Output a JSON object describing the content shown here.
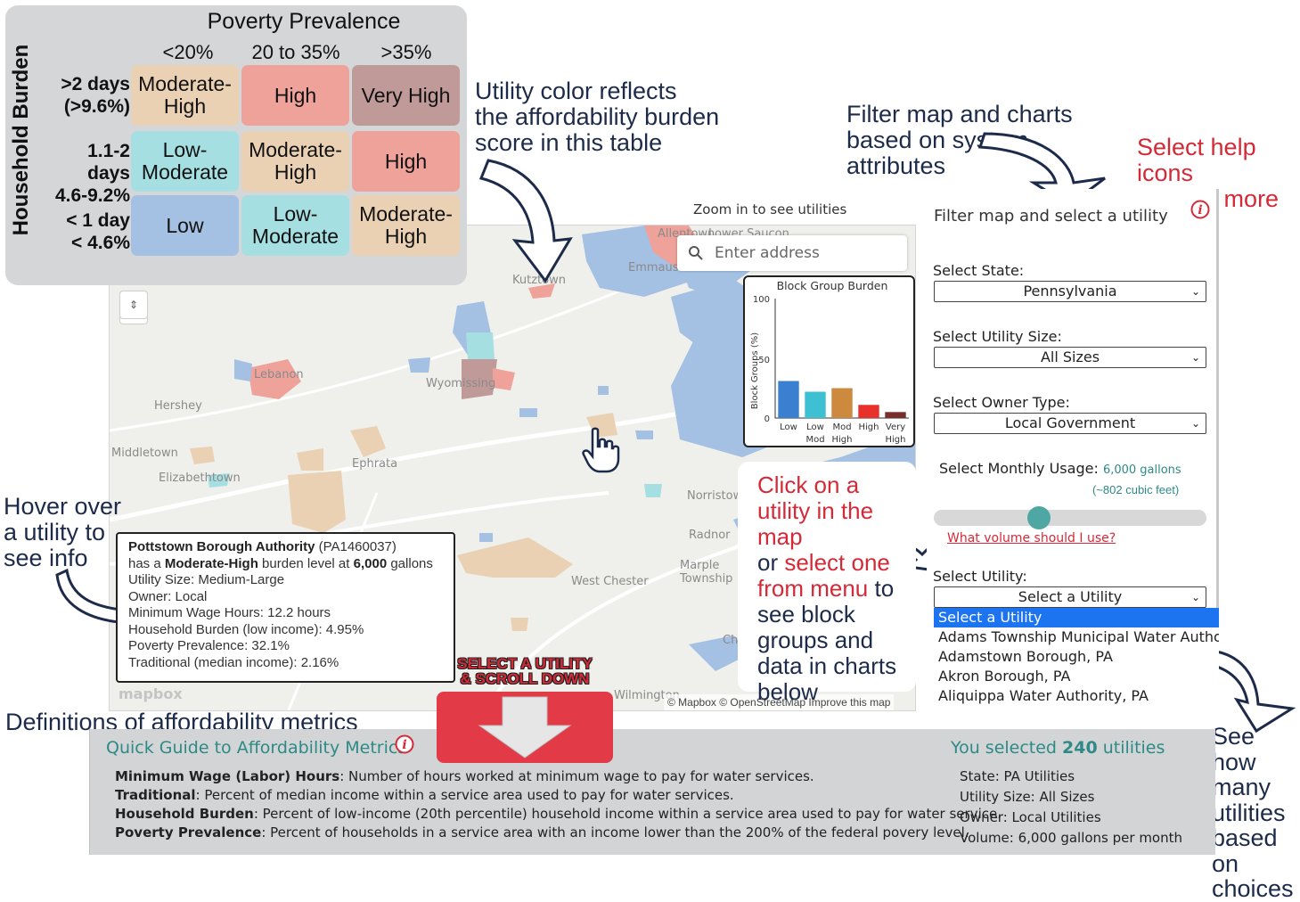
{
  "poverty_table": {
    "title": "Poverty Prevalence",
    "columns": [
      "<20%",
      "20 to 35%",
      ">35%"
    ],
    "axis_label": "Household Burden",
    "rows": [
      {
        "label_line1": ">2 days",
        "label_line2": "(>9.6%)",
        "cells": [
          "Moderate-High",
          "High",
          "Very High"
        ]
      },
      {
        "label_line1": "1.1-2 days",
        "label_line2": "4.6-9.2%",
        "cells": [
          "Low-Moderate",
          "Moderate-High",
          "High"
        ]
      },
      {
        "label_line1": "< 1 day",
        "label_line2": "< 4.6%",
        "cells": [
          "Low",
          "Low-Moderate",
          "Moderate-High"
        ]
      }
    ],
    "cell_lines": [
      [
        [
          "Moderate-",
          "High"
        ],
        [
          "High",
          ""
        ],
        [
          "Very High",
          ""
        ]
      ],
      [
        [
          "Low-",
          "Moderate"
        ],
        [
          "Moderate-",
          "High"
        ],
        [
          "High",
          ""
        ]
      ],
      [
        [
          "Low",
          ""
        ],
        [
          "Low-",
          "Moderate"
        ],
        [
          "Moderate-",
          "High"
        ]
      ]
    ]
  },
  "colors": {
    "very_high": "#c09a98",
    "high": "#eea29a",
    "moderate_high": "#ead1b3",
    "low_moderate": "#a6dfe2",
    "low": "#a4c0e3",
    "accent_red": "#d42a38",
    "teal": "#2d8a86"
  },
  "annotations": {
    "utility_color": [
      "Utility color reflects",
      "the affordability burden",
      "score in this table"
    ],
    "filter": [
      "Filter map and charts",
      "based on system",
      "attributes"
    ],
    "help": [
      "Select help icons",
      "to learn more"
    ],
    "hover": [
      "Hover over",
      "a utility to",
      "see info"
    ],
    "definitions": "Definitions of affordability metrics",
    "see_how": [
      "See how",
      "many",
      "utilities",
      "based on",
      "choices"
    ]
  },
  "map": {
    "zoom_note": "Zoom in to see utilities",
    "search_placeholder": "Enter address",
    "places": [
      "Allentown",
      "Lower Saucon",
      "Emmaus",
      "Kutztown",
      "Lebanon",
      "Wyomissing",
      "Hershey",
      "Middletown",
      "Elizabethtown",
      "Ephrata",
      "Norristown",
      "Radnor",
      "Marple Township",
      "West Chester",
      "Wilmington",
      "Chester"
    ],
    "attribution": "© Mapbox © OpenStreetMap Improve this map",
    "logo": "mapbox"
  },
  "chart_data": {
    "type": "bar",
    "title": "Block Group Burden",
    "ylabel": "Block Groups (%)",
    "ylim": [
      0,
      100
    ],
    "yticks": [
      "100",
      "50",
      "0"
    ],
    "categories": [
      "Low",
      "Low Mod",
      "Mod High",
      "High",
      "Very High"
    ],
    "category_lines": [
      [
        "Low",
        ""
      ],
      [
        "Low",
        "Mod"
      ],
      [
        "Mod",
        "High"
      ],
      [
        "High",
        ""
      ],
      [
        "Very",
        "High"
      ]
    ],
    "values": [
      31,
      22,
      25,
      11,
      5
    ],
    "bar_colors": [
      "#3b7fd1",
      "#3cc0d2",
      "#cd8a3e",
      "#e8312b",
      "#7a2e28"
    ]
  },
  "tooltip": {
    "utility_name": "Pottstown Borough Authority",
    "utility_id": "(PA1460037)",
    "burden_prefix": "has a ",
    "burden_level": "Moderate-High",
    "burden_mid": " burden level at ",
    "gallons": "6,000",
    "gallons_suffix": " gallons",
    "size": "Utility Size: Medium-Large",
    "owner": "Owner: Local",
    "min_wage": "Minimum Wage Hours: 12.2 hours",
    "household_burden": "Household Burden (low income): 4.95%",
    "poverty": "Poverty Prevalence: 32.1%",
    "traditional": "Traditional (median income): 2.16%"
  },
  "click_box": {
    "part1": "Click on a utility in the map",
    "part2": "or ",
    "part3": "select one from menu",
    "part4": " to see block groups and data in charts below"
  },
  "scroll_button": {
    "line1": "SELECT A UTILITY",
    "line2": "& SCROLL DOWN"
  },
  "filter_panel": {
    "title": "Filter map and select a utility",
    "state_label": "Select State:",
    "state_value": "Pennsylvania",
    "size_label": "Select Utility Size:",
    "size_value": "All Sizes",
    "owner_label": "Select Owner Type:",
    "owner_value": "Local Government",
    "usage_label": "Select Monthly Usage:",
    "usage_value": "6,000 gallons",
    "usage_sub": "(~802 cubic feet)",
    "usage_fraction": 0.33,
    "volume_link": "What volume should I use?",
    "utility_label": "Select Utility:",
    "utility_value": "Select a Utility",
    "utility_options": [
      "Select a Utility",
      "Adams Township Municipal Water Author",
      "Adamstown Borough, PA",
      "Akron Borough, PA",
      "Aliquippa Water Authority, PA"
    ]
  },
  "guide": {
    "title": "Quick Guide to Affordability Metrics",
    "lines": [
      {
        "term": "Minimum Wage (Labor) Hours",
        "text": ": Number of hours worked at minimum wage to pay for water services."
      },
      {
        "term": "Traditional",
        "text": ": Percent of median income within a service area used to pay for water services."
      },
      {
        "term": "Household Burden",
        "text": ": Percent of low-income (20th percentile) household income within a service area used to pay for water service."
      },
      {
        "term": "Poverty Prevalence",
        "text": ": Percent of households in a service area with an income lower than the 200% of the federal povery level."
      }
    ],
    "selected_prefix": "You selected ",
    "selected_count": "240",
    "selected_suffix": " utilities",
    "summary": [
      "State: PA Utilities",
      "Utility Size: All Sizes",
      "Owner: Local Utilities",
      "Volume: 6,000 gallons per month"
    ]
  }
}
